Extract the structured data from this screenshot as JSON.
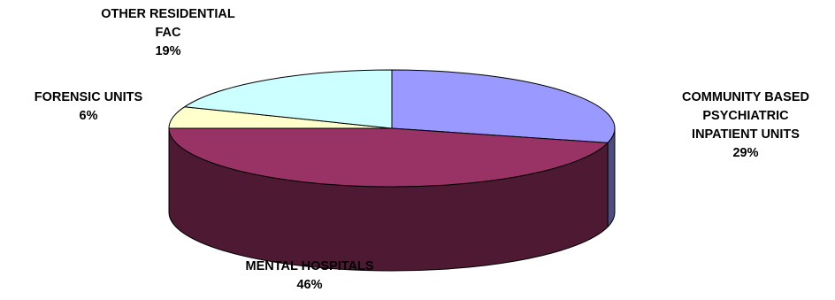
{
  "chart_data": {
    "type": "pie",
    "style": "3d",
    "slices": [
      {
        "label_lines": [
          "COMMUNITY BASED",
          "PSYCHIATRIC",
          "INPATIENT UNITS"
        ],
        "value": 29,
        "value_label": "29%",
        "color": "#9999ff",
        "side_color": "#4d4d80"
      },
      {
        "label_lines": [
          "MENTAL HOSPITALS"
        ],
        "value": 46,
        "value_label": "46%",
        "color": "#993366",
        "side_color": "#4d1933"
      },
      {
        "label_lines": [
          "FORENSIC UNITS"
        ],
        "value": 6,
        "value_label": "6%",
        "color": "#ffffcc",
        "side_color": "#808066"
      },
      {
        "label_lines": [
          "OTHER RESIDENTIAL",
          "FAC"
        ],
        "value": 19,
        "value_label": "19%",
        "color": "#ccffff",
        "side_color": "#668080"
      }
    ]
  }
}
